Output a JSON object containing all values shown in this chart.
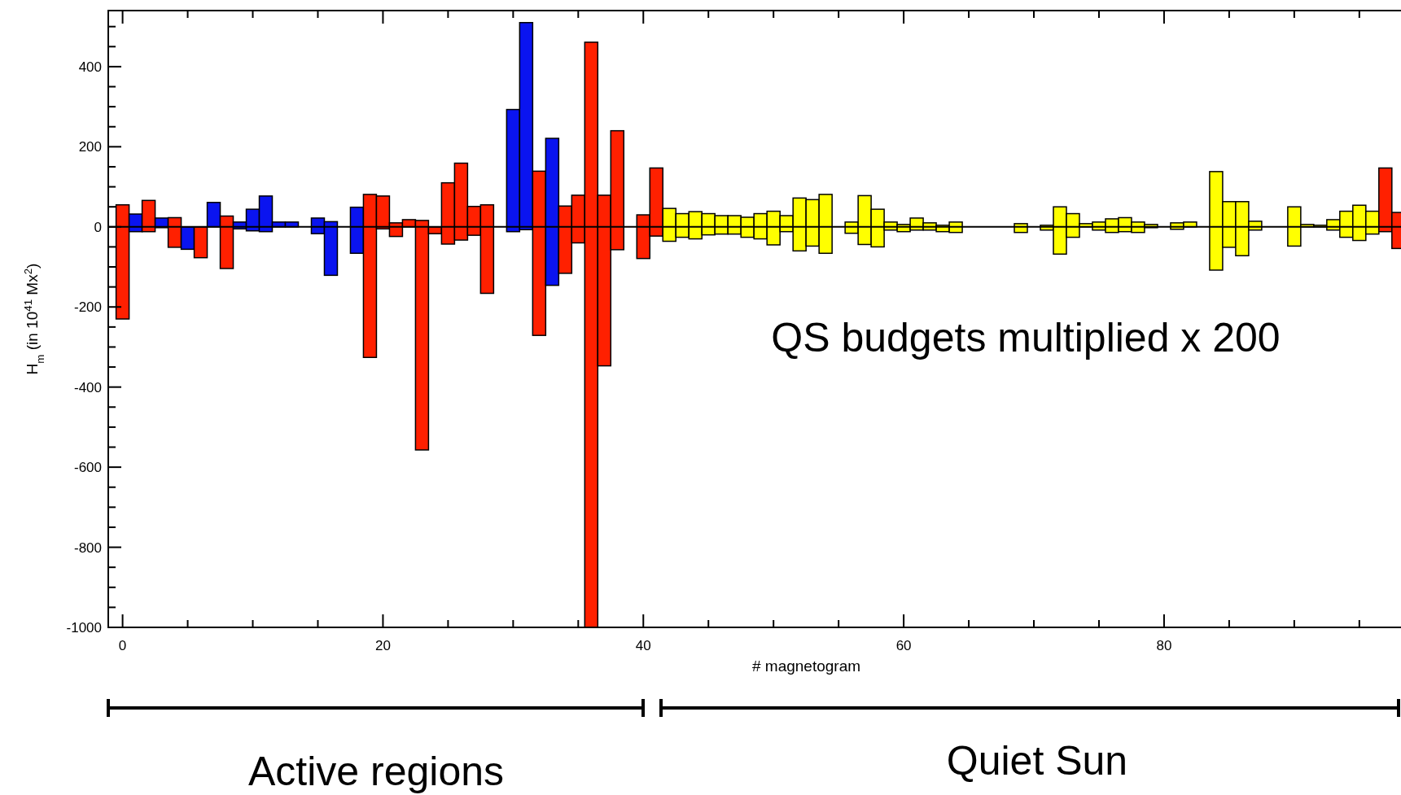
{
  "chart_data": {
    "type": "bar",
    "xlabel": "# magnetogram",
    "ylabel": "H$_{m}$ (in 10$^{41}$ Mx$^{2}$)",
    "x": [
      0,
      1,
      2,
      3,
      4,
      5,
      6,
      7,
      8,
      9,
      10,
      11,
      12,
      13,
      15,
      16,
      18,
      19,
      20,
      21,
      22,
      23,
      24,
      25,
      26,
      27,
      28,
      30,
      31,
      32,
      33,
      34,
      35,
      36,
      37,
      38,
      40,
      41,
      42,
      43,
      44,
      45,
      46,
      47,
      48,
      49,
      50,
      51,
      52,
      53,
      54,
      56,
      57,
      58,
      59,
      60,
      61,
      62,
      63,
      64,
      69,
      71,
      72,
      73,
      74,
      75,
      76,
      77,
      78,
      79,
      81,
      82,
      84,
      85,
      86,
      87,
      90,
      91,
      92,
      93,
      94,
      95,
      96,
      97,
      98
    ],
    "base": [
      -230,
      -12,
      -12,
      -2,
      -51,
      -56,
      -77,
      0,
      -104,
      -5,
      -10,
      -12,
      0,
      0,
      -17,
      -121,
      -66,
      -326,
      -5,
      -24,
      0,
      -557,
      -17,
      -43,
      -33,
      -21,
      -166,
      -12,
      -7,
      -271,
      -146,
      -116,
      -40,
      -1000,
      -347,
      -57,
      -79,
      -23,
      -36,
      -26,
      -30,
      -20,
      -18,
      -18,
      -26,
      -30,
      -45,
      -12,
      -60,
      -48,
      -66,
      -16,
      -44,
      -50,
      -8,
      -12,
      -8,
      -8,
      -12,
      -14,
      -14,
      -8,
      -68,
      -26,
      0,
      -8,
      -14,
      -12,
      -14,
      -2,
      -6,
      0,
      -108,
      -51,
      -72,
      -8,
      -48,
      0,
      0,
      -8,
      -26,
      -34,
      -18,
      -12,
      -54
    ],
    "values": [
      285,
      44,
      78,
      24,
      74,
      56,
      77,
      61,
      131,
      17,
      54,
      89,
      12,
      12,
      39,
      134,
      115,
      407,
      82,
      34,
      18,
      573,
      17,
      153,
      192,
      72,
      221,
      305,
      517,
      410,
      367,
      168,
      119,
      1461,
      426,
      297,
      109,
      170,
      82,
      59,
      68,
      53,
      46,
      46,
      50,
      63,
      84,
      40,
      132,
      116,
      147,
      28,
      122,
      94,
      20,
      18,
      30,
      18,
      16,
      26,
      22,
      12,
      118,
      59,
      8,
      20,
      34,
      35,
      26,
      8,
      16,
      12,
      246,
      114,
      135,
      22,
      98,
      6,
      4,
      26,
      65,
      88,
      57,
      159,
      90
    ],
    "colors": [
      "#ff2000",
      "#0a14f0",
      "#ff2000",
      "#0a14f0",
      "#ff2000",
      "#0a14f0",
      "#ff2000",
      "#0a14f0",
      "#ff2000",
      "#0a14f0",
      "#0a14f0",
      "#0a14f0",
      "#0a14f0",
      "#0a14f0",
      "#0a14f0",
      "#0a14f0",
      "#0a14f0",
      "#ff2000",
      "#ff2000",
      "#ff2000",
      "#ff2000",
      "#ff2000",
      "#ff2000",
      "#ff2000",
      "#ff2000",
      "#ff2000",
      "#ff2000",
      "#0a14f0",
      "#0a14f0",
      "#ff2000",
      "#0a14f0",
      "#ff2000",
      "#ff2000",
      "#ff2000",
      "#ff2000",
      "#ff2000",
      "#ff2000",
      "#ff2000",
      "#ffff00",
      "#ffff00",
      "#ffff00",
      "#ffff00",
      "#ffff00",
      "#ffff00",
      "#ffff00",
      "#ffff00",
      "#ffff00",
      "#ffff00",
      "#ffff00",
      "#ffff00",
      "#ffff00",
      "#ffff00",
      "#ffff00",
      "#ffff00",
      "#ffff00",
      "#ffff00",
      "#ffff00",
      "#ffff00",
      "#ffff00",
      "#ffff00",
      "#ffff00",
      "#ffff00",
      "#ffff00",
      "#ffff00",
      "#ffff00",
      "#ffff00",
      "#ffff00",
      "#ffff00",
      "#ffff00",
      "#ffff00",
      "#ffff00",
      "#ffff00",
      "#ffff00",
      "#ffff00",
      "#ffff00",
      "#ffff00",
      "#ffff00",
      "#ffff00",
      "#ffff00",
      "#ffff00",
      "#ffff00",
      "#ffff00",
      "#ffff00",
      "#ff2000",
      "#ff2000"
    ],
    "xlim": [
      -1.1,
      98.2
    ],
    "xticks": [
      0,
      {
        "value": 5,
        "label": null
      },
      {
        "value": 10,
        "label": null
      },
      {
        "value": 15,
        "label": null
      },
      20,
      {
        "value": 25,
        "label": null
      },
      {
        "value": 30,
        "label": null
      },
      {
        "value": 35,
        "label": null
      },
      40,
      {
        "value": 45,
        "label": null
      },
      {
        "value": 50,
        "label": null
      },
      {
        "value": 55,
        "label": null
      },
      60,
      {
        "value": 65,
        "label": null
      },
      {
        "value": 70,
        "label": null
      },
      {
        "value": 75,
        "label": null
      },
      80,
      {
        "value": 85,
        "label": null
      },
      {
        "value": 90,
        "label": null
      },
      {
        "value": 95,
        "label": null
      }
    ],
    "ylim": [
      -1000,
      540
    ],
    "yticks": [
      -1000,
      {
        "value": -950,
        "label": null
      },
      {
        "value": -900,
        "label": null
      },
      {
        "value": -850,
        "label": null
      },
      -800,
      {
        "value": -750,
        "label": null
      },
      {
        "value": -700,
        "label": null
      },
      {
        "value": -650,
        "label": null
      },
      -600,
      {
        "value": -550,
        "label": null
      },
      {
        "value": -500,
        "label": null
      },
      {
        "value": -450,
        "label": null
      },
      -400,
      {
        "value": -350,
        "label": null
      },
      {
        "value": -300,
        "label": null
      },
      {
        "value": -250,
        "label": null
      },
      -200,
      {
        "value": -150,
        "label": null
      },
      {
        "value": -100,
        "label": null
      },
      {
        "value": -50,
        "label": null
      },
      0,
      {
        "value": 50,
        "label": null
      },
      {
        "value": 100,
        "label": null
      },
      {
        "value": 150,
        "label": null
      },
      200,
      {
        "value": 250,
        "label": null
      },
      {
        "value": 300,
        "label": null
      },
      {
        "value": 350,
        "label": null
      },
      400,
      {
        "value": 450,
        "label": null
      },
      {
        "value": 500,
        "label": null
      }
    ],
    "ref_lines": [
      {
        "axis": "y",
        "value": 0,
        "color": "#000000"
      }
    ],
    "annotations": [
      "QS budgets multiplied x 200",
      "Active regions",
      "Quiet Sun"
    ]
  }
}
